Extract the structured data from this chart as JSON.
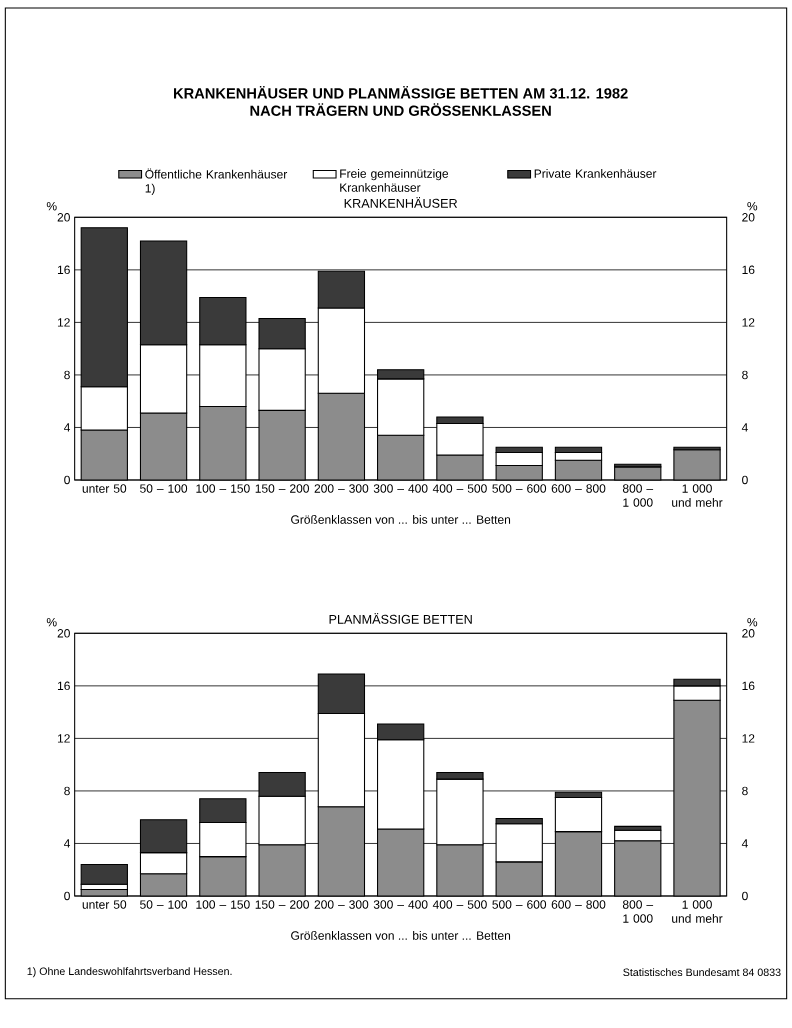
{
  "chart_data": [
    {
      "type": "bar",
      "title": "KRANKENHÄUSER UND PLANMÄSSIGE BETTEN AM 31.12. 1982",
      "subtitle": "NACH TRÄGERN UND GRÖSSENKLASSEN",
      "annotations": [
        "KRANKENHÄUSER"
      ],
      "categories": [
        "unter 50",
        "50 – 100",
        "100 – 150",
        "150 – 200",
        "200 – 300",
        "300 – 400",
        "400 – 500",
        "500 – 600",
        "600 – 800",
        "800 – 1 000",
        "1 000 und mehr"
      ],
      "series": [
        {
          "name": "Öffentliche Krankenhäuser 1)",
          "color": "#8c8c8c",
          "values": [
            3.8,
            5.1,
            5.6,
            5.3,
            6.6,
            3.4,
            1.9,
            1.1,
            1.5,
            1.0,
            2.3
          ]
        },
        {
          "name": "Freie gemeinnützige Krankenhäuser",
          "color": "#ffffff",
          "values": [
            3.3,
            5.2,
            4.7,
            4.7,
            6.5,
            4.3,
            2.4,
            1.0,
            0.6,
            null,
            null
          ]
        },
        {
          "name": "Private Krankenhäuser",
          "color": "#3a3a3a",
          "values": [
            12.1,
            7.9,
            3.6,
            2.3,
            2.8,
            0.7,
            0.5,
            0.4,
            0.4,
            0.2,
            0.2
          ]
        }
      ],
      "stacked": true,
      "xlabel": "Größenklassen von ... bis unter ... Betten",
      "ylabel": "%",
      "y2label": "%",
      "ylim": [
        0,
        20
      ],
      "yticks": [
        0,
        4,
        8,
        12,
        16,
        20
      ],
      "y2lim": [
        0,
        20
      ],
      "y2ticks": [
        0,
        4,
        8,
        12,
        16,
        20
      ],
      "grid": "y",
      "legend": "top"
    },
    {
      "type": "bar",
      "title": "PLANMÄSSIGE BETTEN",
      "annotations": [
        "1) Ohne Landeswohlfahrtsverband Hessen.",
        "Statistisches Bundesamt 84 0833"
      ],
      "categories": [
        "unter 50",
        "50 – 100",
        "100 – 150",
        "150 – 200",
        "200 – 300",
        "300 – 400",
        "400 – 500",
        "500 – 600",
        "600 – 800",
        "800 – 1 000",
        "1 000 und mehr"
      ],
      "series": [
        {
          "color": "#8c8c8c",
          "values": [
            0.5,
            1.7,
            3.0,
            3.9,
            6.8,
            5.1,
            3.9,
            2.6,
            4.9,
            4.2,
            14.9
          ]
        },
        {
          "color": "#ffffff",
          "values": [
            0.4,
            1.6,
            2.6,
            3.7,
            7.1,
            6.8,
            5.0,
            2.9,
            2.6,
            0.8,
            1.1
          ]
        },
        {
          "color": "#3a3a3a",
          "values": [
            1.5,
            2.5,
            1.8,
            1.8,
            3.0,
            1.2,
            0.5,
            0.4,
            0.4,
            0.3,
            0.5
          ]
        }
      ],
      "stacked": true,
      "xlabel": "Größenklassen von ... bis unter ... Betten",
      "ylabel": "%",
      "y2label": "%",
      "ylim": [
        0,
        20
      ],
      "yticks": [
        0,
        4,
        8,
        12,
        16,
        20
      ],
      "y2lim": [
        0,
        20
      ],
      "y2ticks": [
        0,
        4,
        8,
        12,
        16,
        20
      ],
      "grid": "y"
    }
  ]
}
